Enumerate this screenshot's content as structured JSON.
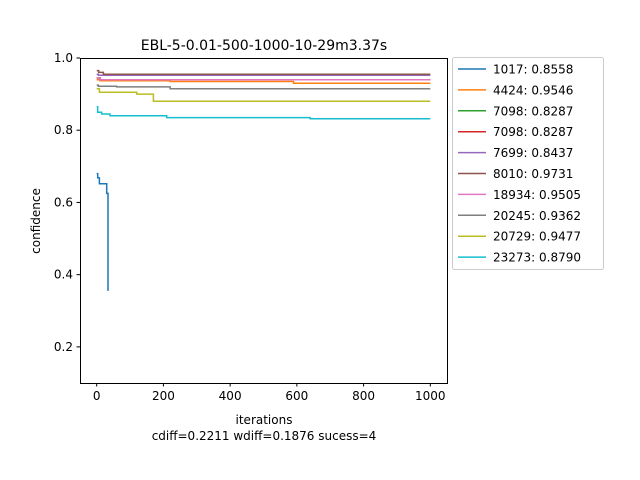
{
  "chart_data": {
    "type": "line",
    "title": "EBL-5-0.01-500-1000-10-29m3.37s",
    "xlabel": "iterations",
    "ylabel": "confidence",
    "subtitle": "cdiff=0.2211 wdiff=0.1876 sucess=4",
    "xlim": [
      -50,
      1050
    ],
    "ylim": [
      0.1,
      1.0
    ],
    "x_ticks": [
      0,
      200,
      400,
      600,
      800,
      1000
    ],
    "y_ticks": [
      0.2,
      0.4,
      0.6,
      0.8,
      1.0
    ],
    "x_tick_labels": [
      "0",
      "200",
      "400",
      "600",
      "800",
      "1000"
    ],
    "y_tick_labels": [
      "0.2",
      "0.4",
      "0.6",
      "0.8",
      "1.0"
    ],
    "grid": false,
    "legend_position": "outside-right",
    "series": [
      {
        "name": "1017: 0.8558",
        "color": "#1f77b4",
        "style": "step",
        "points": [
          [
            0,
            0.68
          ],
          [
            3,
            0.668
          ],
          [
            8,
            0.652
          ],
          [
            30,
            0.625
          ],
          [
            34,
            0.355
          ]
        ]
      },
      {
        "name": "4424: 0.9546",
        "color": "#ff7f0e",
        "style": "step",
        "points": [
          [
            0,
            0.94
          ],
          [
            10,
            0.937
          ],
          [
            220,
            0.935
          ],
          [
            590,
            0.93
          ],
          [
            1000,
            0.93
          ]
        ]
      },
      {
        "name": "7098: 0.8287",
        "color": "#2ca02c",
        "style": "step",
        "points": [
          [
            0,
            0.945
          ],
          [
            10,
            0.94
          ],
          [
            1000,
            0.94
          ]
        ]
      },
      {
        "name": "7098: 0.8287",
        "color": "#d62728",
        "style": "step",
        "points": [
          [
            0,
            0.945
          ],
          [
            10,
            0.94
          ],
          [
            1000,
            0.94
          ]
        ]
      },
      {
        "name": "7699: 0.8437",
        "color": "#9467bd",
        "style": "step",
        "points": [
          [
            0,
            0.955
          ],
          [
            5,
            0.952
          ],
          [
            1000,
            0.952
          ]
        ]
      },
      {
        "name": "8010: 0.9731",
        "color": "#8c564b",
        "style": "step",
        "points": [
          [
            0,
            0.965
          ],
          [
            6,
            0.96
          ],
          [
            20,
            0.955
          ],
          [
            1000,
            0.955
          ]
        ]
      },
      {
        "name": "18934: 0.9505",
        "color": "#e377c2",
        "style": "step",
        "points": [
          [
            0,
            0.945
          ],
          [
            10,
            0.94
          ],
          [
            1000,
            0.94
          ]
        ]
      },
      {
        "name": "20245: 0.9362",
        "color": "#7f7f7f",
        "style": "step",
        "points": [
          [
            0,
            0.925
          ],
          [
            5,
            0.922
          ],
          [
            60,
            0.92
          ],
          [
            220,
            0.915
          ],
          [
            1000,
            0.915
          ]
        ]
      },
      {
        "name": "20729: 0.9477",
        "color": "#bcbd22",
        "style": "step",
        "points": [
          [
            0,
            0.915
          ],
          [
            8,
            0.905
          ],
          [
            120,
            0.9
          ],
          [
            170,
            0.88
          ],
          [
            1000,
            0.88
          ]
        ]
      },
      {
        "name": "23273: 0.8790",
        "color": "#17becf",
        "style": "step",
        "points": [
          [
            0,
            0.865
          ],
          [
            3,
            0.85
          ],
          [
            15,
            0.845
          ],
          [
            40,
            0.84
          ],
          [
            210,
            0.835
          ],
          [
            640,
            0.832
          ],
          [
            1000,
            0.832
          ]
        ]
      }
    ]
  }
}
